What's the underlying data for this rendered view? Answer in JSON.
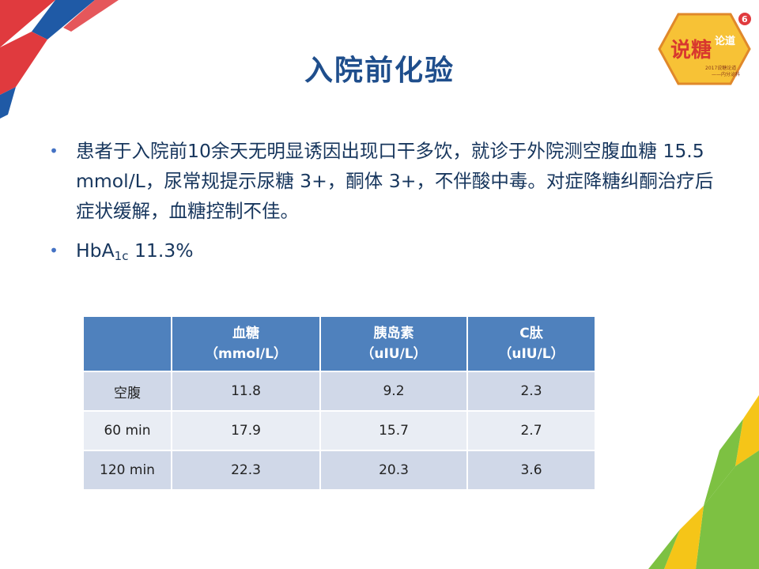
{
  "slide": {
    "title": "入院前化验"
  },
  "bullets": [
    {
      "text": "患者于入院前10余天无明显诱因出现口干多饮，就诊于外院测空腹血糖 15.5 mmol/L，尿常规提示尿糖 3+，酮体 3+，不伴酸中毒。对症降糖纠酮治疗后症状缓解，血糖控制不佳。"
    },
    {
      "prefix": "HbA",
      "subscript": "1c",
      "suffix": " 11.3%"
    }
  ],
  "table": {
    "headers": [
      {
        "line1": "",
        "line2": ""
      },
      {
        "line1": "血糖",
        "line2": "（mmol/L）"
      },
      {
        "line1": "胰岛素",
        "line2": "（uIU/L）"
      },
      {
        "line1": "C肽",
        "line2": "（uIU/L）"
      }
    ],
    "rows": [
      [
        "空腹",
        "11.8",
        "9.2",
        "2.3"
      ],
      [
        "60 min",
        "17.9",
        "15.7",
        "2.7"
      ],
      [
        "120 min",
        "22.3",
        "20.3",
        "3.6"
      ]
    ]
  },
  "logo": {
    "main_text": "说糖",
    "side_text": "论道",
    "badge_text": "6",
    "caption1": "2017说糖论道",
    "caption2": "——内分泌科"
  },
  "colors": {
    "title": "#1f4e8c",
    "body_text": "#17365d",
    "bullet": "#4472c4",
    "table_header": "#4f81bd",
    "table_row_dark": "#d0d8e8",
    "table_row_light": "#e9edf4",
    "deco_red": "#e03a3e",
    "deco_blue": "#1f5aa6",
    "deco_green": "#7dc142",
    "deco_yellow": "#f5c518"
  }
}
